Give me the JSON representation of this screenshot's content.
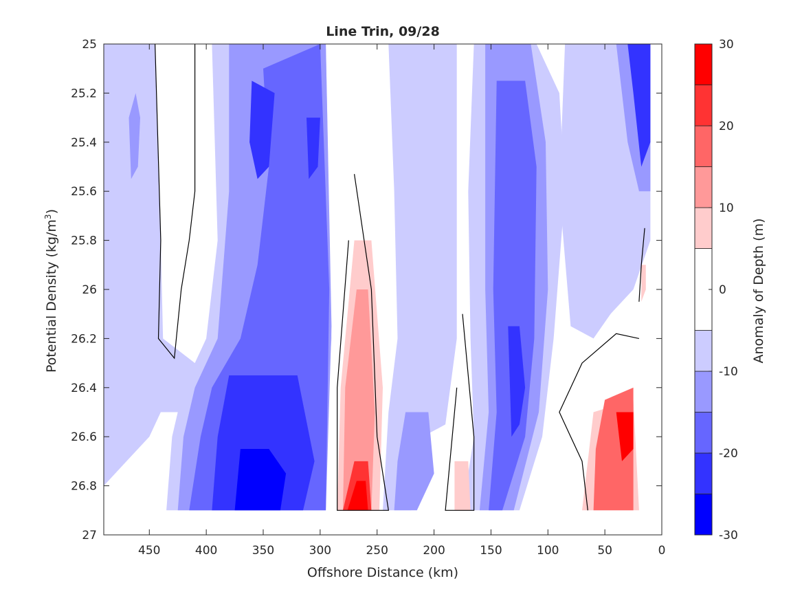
{
  "chart_data": {
    "type": "heatmap",
    "title": "Line Trin, 09/28",
    "xlabel": "Offshore Distance (km)",
    "ylabel": "Potential Density (kg/m",
    "ylabel_sup": "3",
    "ylabel_close": ")",
    "xlim": [
      490,
      0
    ],
    "ylim": [
      25,
      27
    ],
    "y_reversed": true,
    "x_reversed": true,
    "xticks": [
      450,
      400,
      350,
      300,
      250,
      200,
      150,
      100,
      50,
      0
    ],
    "yticks": [
      25,
      25.2,
      25.4,
      25.6,
      25.8,
      26,
      26.2,
      26.4,
      26.6,
      26.8,
      27
    ],
    "xtick_labels": [
      "450",
      "400",
      "350",
      "300",
      "250",
      "200",
      "150",
      "100",
      "50",
      "0"
    ],
    "ytick_labels": [
      "25",
      "25.2",
      "25.4",
      "25.6",
      "25.8",
      "26",
      "26.2",
      "26.4",
      "26.6",
      "26.8",
      "27"
    ],
    "colorbar": {
      "label": "Anomaly of Depth (m)",
      "levels": [
        -30,
        -25,
        -20,
        -15,
        -10,
        -5,
        5,
        10,
        15,
        20,
        25,
        30
      ],
      "colors": [
        "#0000ff",
        "#3333ff",
        "#6666ff",
        "#9999ff",
        "#ccccff",
        "#ffffff",
        "#ffcccc",
        "#ff9999",
        "#ff6666",
        "#ff3333",
        "#ff0000"
      ],
      "ticks": [
        -30,
        -20,
        -10,
        0,
        10,
        20,
        30
      ],
      "tick_labels": [
        "-30",
        "-20",
        "-10",
        "0",
        "10",
        "20",
        "30"
      ]
    },
    "field_extent": {
      "x": [
        490,
        0
      ],
      "y": [
        25,
        26.9
      ]
    },
    "field_approximation": [
      {
        "name": "neg-10-band-west",
        "value": -8,
        "polygon": [
          [
            490,
            25
          ],
          [
            445,
            25
          ],
          [
            440,
            25.8
          ],
          [
            438,
            26.2
          ],
          [
            410,
            26.3
          ],
          [
            400,
            26.5
          ],
          [
            440,
            26.5
          ],
          [
            450,
            26.6
          ],
          [
            470,
            26.7
          ],
          [
            490,
            26.8
          ]
        ]
      },
      {
        "name": "neg-15-pocket-460",
        "value": -12,
        "polygon": [
          [
            468,
            25.3
          ],
          [
            462,
            25.2
          ],
          [
            458,
            25.3
          ],
          [
            460,
            25.5
          ],
          [
            466,
            25.55
          ]
        ]
      },
      {
        "name": "neg-10-central",
        "value": -8,
        "polygon": [
          [
            395,
            25
          ],
          [
            295,
            25
          ],
          [
            290,
            26.2
          ],
          [
            300,
            26.9
          ],
          [
            435,
            26.9
          ],
          [
            430,
            26.6
          ],
          [
            420,
            26.4
          ],
          [
            400,
            26.2
          ],
          [
            390,
            25.8
          ]
        ]
      },
      {
        "name": "neg-15-central",
        "value": -12,
        "polygon": [
          [
            380,
            25
          ],
          [
            295,
            25
          ],
          [
            290,
            26.15
          ],
          [
            295,
            26.9
          ],
          [
            425,
            26.9
          ],
          [
            420,
            26.6
          ],
          [
            410,
            26.4
          ],
          [
            390,
            26.2
          ],
          [
            380,
            25.6
          ]
        ]
      },
      {
        "name": "neg-20-central",
        "value": -18,
        "polygon": [
          [
            350,
            25.1
          ],
          [
            300,
            25
          ],
          [
            292,
            26.0
          ],
          [
            295,
            26.9
          ],
          [
            415,
            26.9
          ],
          [
            405,
            26.6
          ],
          [
            395,
            26.4
          ],
          [
            370,
            26.2
          ],
          [
            355,
            25.9
          ],
          [
            345,
            25.5
          ]
        ]
      },
      {
        "name": "neg-20-core-upper",
        "value": -22,
        "polygon": [
          [
            360,
            25.15
          ],
          [
            340,
            25.2
          ],
          [
            345,
            25.5
          ],
          [
            355,
            25.55
          ],
          [
            362,
            25.4
          ]
        ]
      },
      {
        "name": "neg-20-core-mid",
        "value": -22,
        "polygon": [
          [
            312,
            25.3
          ],
          [
            300,
            25.3
          ],
          [
            302,
            25.5
          ],
          [
            310,
            25.55
          ]
        ]
      },
      {
        "name": "neg-25-deep",
        "value": -25,
        "polygon": [
          [
            380,
            26.35
          ],
          [
            320,
            26.35
          ],
          [
            305,
            26.7
          ],
          [
            315,
            26.9
          ],
          [
            395,
            26.9
          ],
          [
            390,
            26.6
          ]
        ]
      },
      {
        "name": "neg-30-deep",
        "value": -28,
        "polygon": [
          [
            370,
            26.65
          ],
          [
            345,
            26.65
          ],
          [
            330,
            26.75
          ],
          [
            335,
            26.9
          ],
          [
            375,
            26.9
          ]
        ]
      },
      {
        "name": "neg-10-mid-west",
        "value": -8,
        "polygon": [
          [
            240,
            25
          ],
          [
            180,
            25
          ],
          [
            180,
            26.2
          ],
          [
            190,
            26.55
          ],
          [
            210,
            26.6
          ],
          [
            220,
            26.9
          ],
          [
            245,
            26.9
          ],
          [
            240,
            26.5
          ],
          [
            232,
            26.2
          ],
          [
            235,
            25.6
          ]
        ]
      },
      {
        "name": "neg-15-mid",
        "value": -12,
        "polygon": [
          [
            225,
            26.5
          ],
          [
            205,
            26.5
          ],
          [
            200,
            26.75
          ],
          [
            215,
            26.9
          ],
          [
            235,
            26.9
          ],
          [
            232,
            26.7
          ]
        ]
      },
      {
        "name": "neg-10-mid-east",
        "value": -8,
        "polygon": [
          [
            165,
            25
          ],
          [
            110,
            25
          ],
          [
            90,
            25.2
          ],
          [
            85,
            25.6
          ],
          [
            95,
            26.2
          ],
          [
            105,
            26.6
          ],
          [
            125,
            26.9
          ],
          [
            175,
            26.9
          ],
          [
            165,
            26.6
          ],
          [
            168,
            26.2
          ],
          [
            170,
            25.6
          ]
        ]
      },
      {
        "name": "neg-15-mid-east",
        "value": -12,
        "polygon": [
          [
            155,
            25
          ],
          [
            115,
            25
          ],
          [
            102,
            25.4
          ],
          [
            100,
            26
          ],
          [
            108,
            26.5
          ],
          [
            130,
            26.9
          ],
          [
            160,
            26.9
          ],
          [
            152,
            26.5
          ],
          [
            155,
            26
          ]
        ]
      },
      {
        "name": "neg-20-mid-east",
        "value": -18,
        "polygon": [
          [
            145,
            25.15
          ],
          [
            120,
            25.15
          ],
          [
            110,
            25.5
          ],
          [
            112,
            26.2
          ],
          [
            120,
            26.6
          ],
          [
            140,
            26.9
          ],
          [
            152,
            26.9
          ],
          [
            145,
            26.5
          ],
          [
            148,
            26
          ]
        ]
      },
      {
        "name": "neg-25-mid-east",
        "value": -24,
        "polygon": [
          [
            135,
            26.15
          ],
          [
            125,
            26.15
          ],
          [
            120,
            26.4
          ],
          [
            125,
            26.55
          ],
          [
            132,
            26.6
          ]
        ]
      },
      {
        "name": "neg-10-coast",
        "value": -8,
        "polygon": [
          [
            85,
            25
          ],
          [
            10,
            25
          ],
          [
            10,
            25.8
          ],
          [
            25,
            26.0
          ],
          [
            45,
            26.1
          ],
          [
            60,
            26.2
          ],
          [
            80,
            26.15
          ],
          [
            90,
            25.6
          ]
        ]
      },
      {
        "name": "neg-15-coast",
        "value": -12,
        "polygon": [
          [
            40,
            25
          ],
          [
            10,
            25
          ],
          [
            10,
            25.6
          ],
          [
            20,
            25.6
          ],
          [
            30,
            25.4
          ]
        ]
      },
      {
        "name": "neg-25-coast",
        "value": -24,
        "polygon": [
          [
            30,
            25
          ],
          [
            10,
            25
          ],
          [
            10,
            25.4
          ],
          [
            18,
            25.5
          ],
          [
            25,
            25.2
          ]
        ]
      },
      {
        "name": "pos-5-offshore",
        "value": 8,
        "polygon": [
          [
            270,
            25.8
          ],
          [
            255,
            25.8
          ],
          [
            245,
            26.4
          ],
          [
            248,
            26.9
          ],
          [
            285,
            26.9
          ],
          [
            282,
            26.4
          ]
        ]
      },
      {
        "name": "pos-10-offshore",
        "value": 12,
        "polygon": [
          [
            268,
            26.0
          ],
          [
            258,
            26.0
          ],
          [
            252,
            26.5
          ],
          [
            255,
            26.9
          ],
          [
            280,
            26.9
          ],
          [
            278,
            26.4
          ]
        ]
      },
      {
        "name": "pos-20-offshore",
        "value": 20,
        "polygon": [
          [
            270,
            26.7
          ],
          [
            258,
            26.7
          ],
          [
            255,
            26.9
          ],
          [
            280,
            26.9
          ]
        ]
      },
      {
        "name": "pos-30-offshore",
        "value": 27,
        "polygon": [
          [
            268,
            26.78
          ],
          [
            260,
            26.78
          ],
          [
            258,
            26.9
          ],
          [
            276,
            26.9
          ]
        ]
      },
      {
        "name": "pos-5-coast",
        "value": 8,
        "polygon": [
          [
            60,
            26.5
          ],
          [
            25,
            26.45
          ],
          [
            20,
            26.9
          ],
          [
            70,
            26.9
          ],
          [
            65,
            26.7
          ]
        ]
      },
      {
        "name": "pos-15-coast",
        "value": 15,
        "polygon": [
          [
            50,
            26.45
          ],
          [
            25,
            26.4
          ],
          [
            25,
            26.9
          ],
          [
            60,
            26.9
          ],
          [
            58,
            26.65
          ]
        ]
      },
      {
        "name": "pos-25-coast",
        "value": 25,
        "polygon": [
          [
            40,
            26.5
          ],
          [
            25,
            26.5
          ],
          [
            25,
            26.65
          ],
          [
            35,
            26.7
          ]
        ]
      },
      {
        "name": "pos-5-thin",
        "value": 8,
        "polygon": [
          [
            182,
            26.7
          ],
          [
            170,
            26.7
          ],
          [
            168,
            26.9
          ],
          [
            182,
            26.9
          ]
        ]
      },
      {
        "name": "pos-5-east-sliver",
        "value": 8,
        "polygon": [
          [
            18,
            25.9
          ],
          [
            14,
            25.9
          ],
          [
            14,
            26.0
          ],
          [
            18,
            26.05
          ]
        ]
      }
    ],
    "zero_contours": [
      {
        "name": "zero-contour-west",
        "points": [
          [
            445,
            25
          ],
          [
            440,
            25.8
          ],
          [
            442,
            26.2
          ],
          [
            428,
            26.28
          ],
          [
            422,
            26.0
          ],
          [
            415,
            25.8
          ],
          [
            410,
            25.6
          ],
          [
            410,
            25
          ]
        ]
      },
      {
        "name": "zero-contour-offshore",
        "points": [
          [
            270,
            25.53
          ],
          [
            255,
            26.0
          ],
          [
            250,
            26.6
          ],
          [
            240,
            26.9
          ],
          [
            285,
            26.9
          ],
          [
            285,
            26.4
          ],
          [
            275,
            25.8
          ]
        ]
      },
      {
        "name": "zero-contour-mid",
        "points": [
          [
            175,
            26.1
          ],
          [
            165,
            26.6
          ],
          [
            165,
            26.9
          ],
          [
            190,
            26.9
          ],
          [
            180,
            26.4
          ]
        ]
      },
      {
        "name": "zero-contour-coast",
        "points": [
          [
            65,
            26.9
          ],
          [
            70,
            26.7
          ],
          [
            80,
            26.6
          ],
          [
            90,
            26.5
          ],
          [
            70,
            26.3
          ],
          [
            40,
            26.18
          ],
          [
            20,
            26.2
          ]
        ]
      },
      {
        "name": "zero-contour-east",
        "points": [
          [
            15,
            25.75
          ],
          [
            18,
            25.9
          ],
          [
            20,
            26.05
          ]
        ]
      }
    ]
  }
}
